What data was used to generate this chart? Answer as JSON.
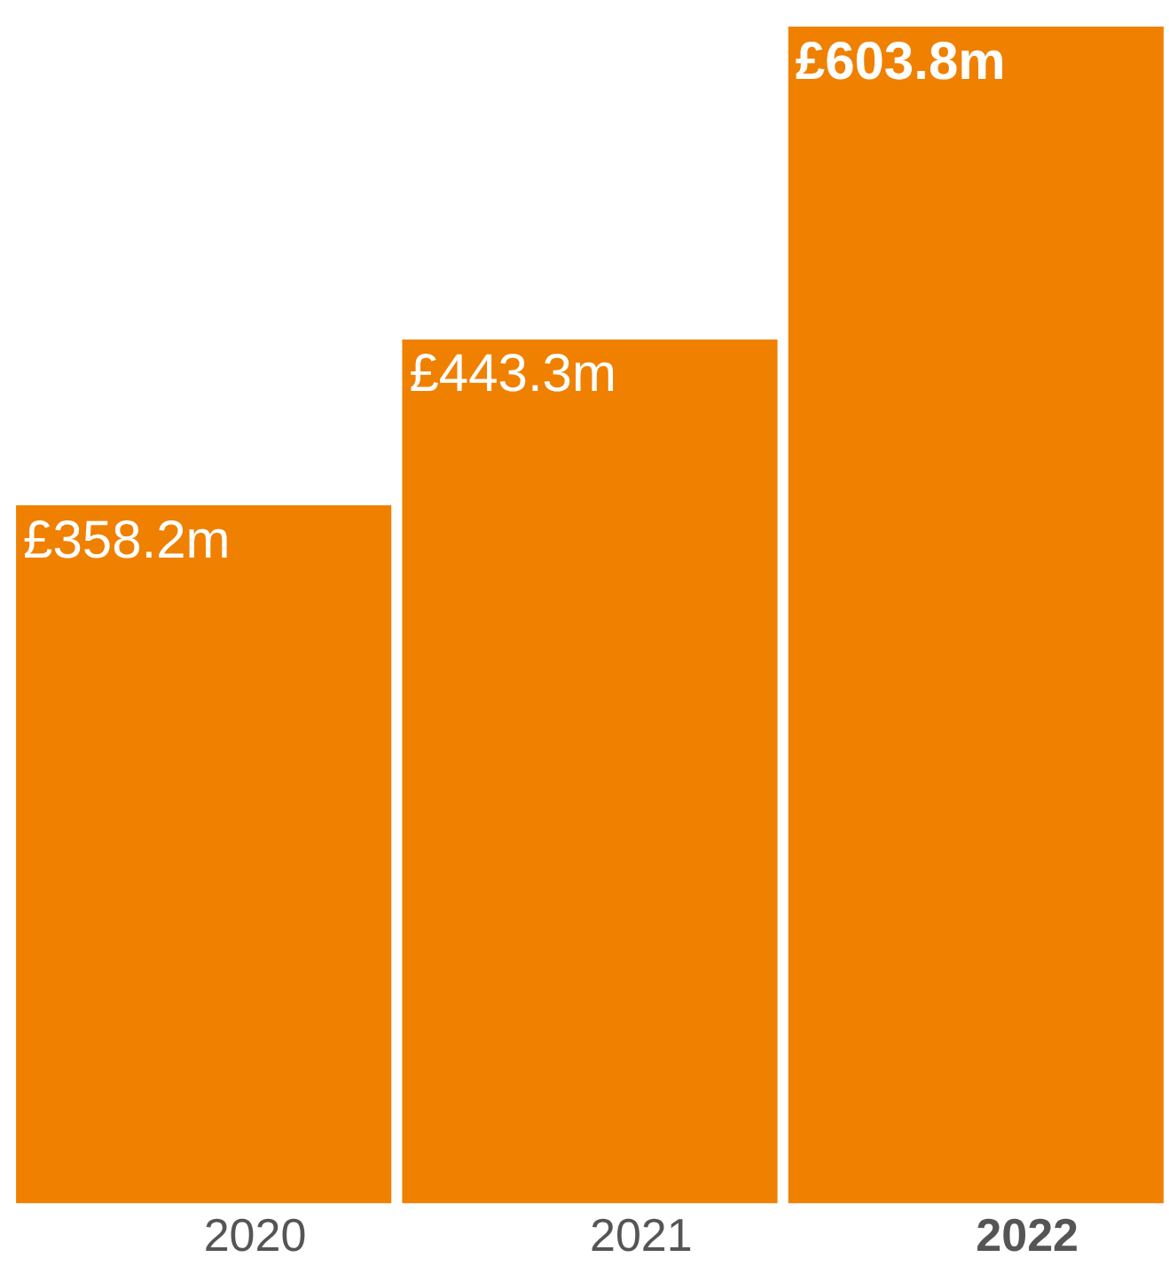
{
  "chart_data": {
    "type": "bar",
    "categories": [
      "2020",
      "2021",
      "2022"
    ],
    "values": [
      358.2,
      443.3,
      603.8
    ],
    "color": "#f08000",
    "value_labels": [
      "£358.2m",
      "£443.3m",
      "£603.8m"
    ],
    "grid": false,
    "legend": false
  }
}
